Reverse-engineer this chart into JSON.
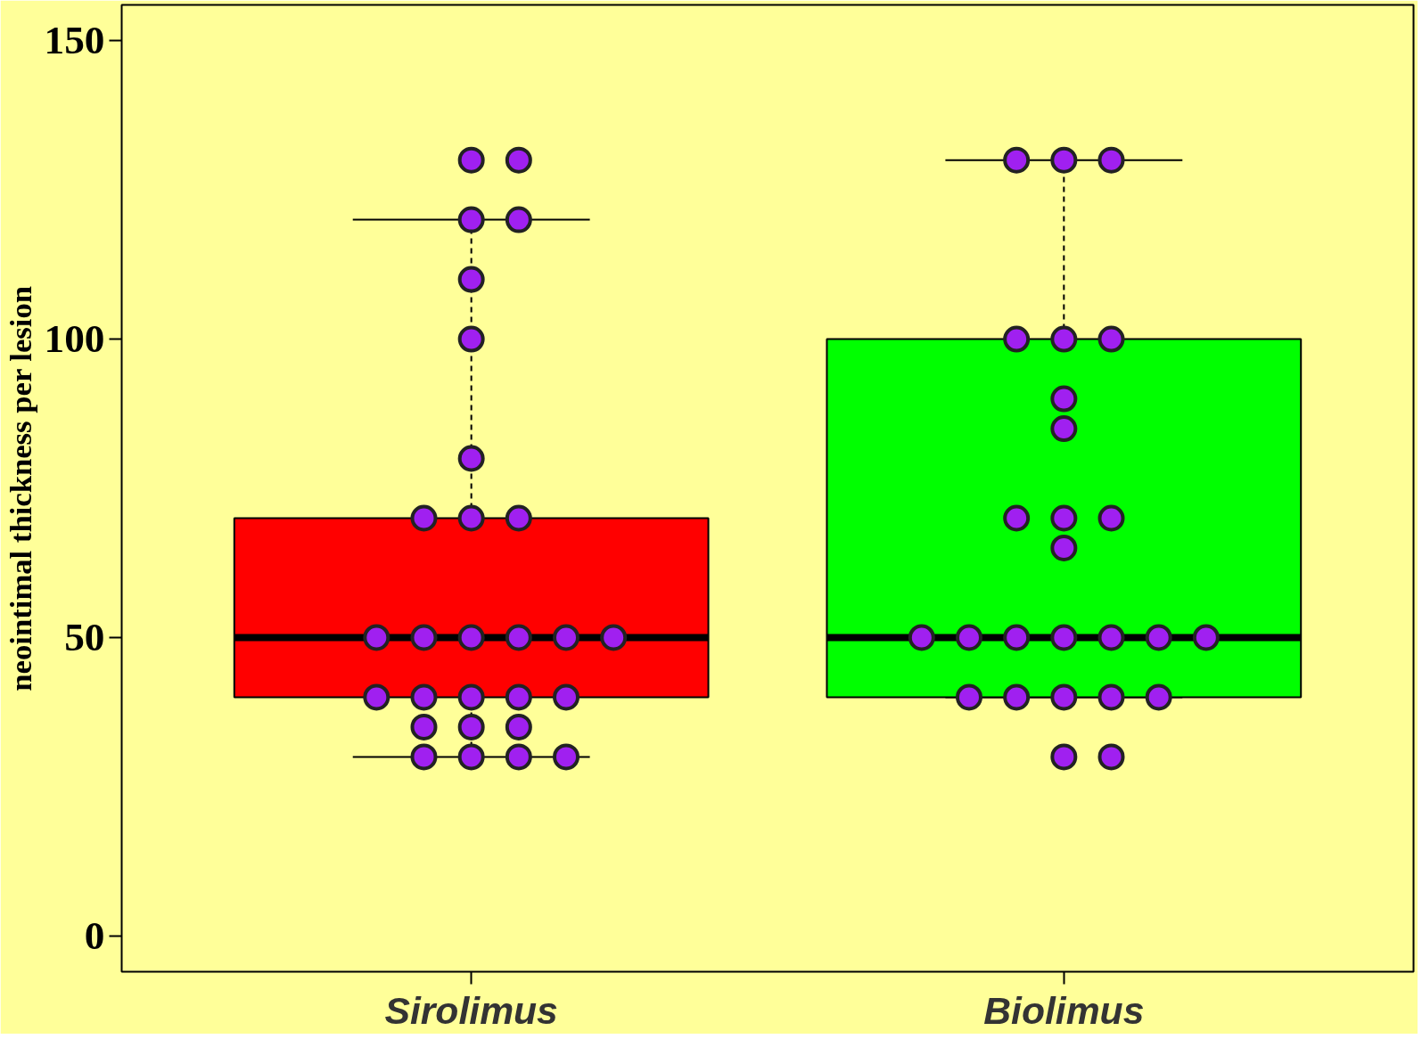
{
  "chart_data": {
    "type": "box",
    "categories": [
      "Sirolimus",
      "Biolimus"
    ],
    "ylabel": "neointimal thickness per lesion",
    "ylim": [
      -6,
      156
    ],
    "yticks": [
      0,
      50,
      100,
      150
    ],
    "grid": false,
    "colors": [
      "#ff0000",
      "#00ff00"
    ],
    "boxes": [
      {
        "low": 30,
        "q1": 40,
        "median": 50,
        "q3": 70,
        "high": 120
      },
      {
        "low": 40,
        "q1": 40,
        "median": 50,
        "q3": 100,
        "high": 130
      }
    ],
    "series": [
      {
        "type": "scatter",
        "color": "#a020f0",
        "marker": "circle",
        "x": [
          "Sirolimus",
          "Sirolimus",
          "Sirolimus",
          "Sirolimus",
          "Sirolimus",
          "Sirolimus",
          "Sirolimus",
          "Sirolimus",
          "Sirolimus",
          "Sirolimus",
          "Sirolimus",
          "Sirolimus",
          "Sirolimus",
          "Sirolimus",
          "Sirolimus",
          "Sirolimus",
          "Sirolimus",
          "Sirolimus",
          "Sirolimus",
          "Sirolimus",
          "Sirolimus",
          "Sirolimus",
          "Sirolimus",
          "Sirolimus",
          "Sirolimus",
          "Sirolimus",
          "Sirolimus",
          "Sirolimus",
          "Biolimus",
          "Biolimus",
          "Biolimus",
          "Biolimus",
          "Biolimus",
          "Biolimus",
          "Biolimus",
          "Biolimus",
          "Biolimus",
          "Biolimus",
          "Biolimus",
          "Biolimus",
          "Biolimus",
          "Biolimus",
          "Biolimus",
          "Biolimus",
          "Biolimus",
          "Biolimus",
          "Biolimus",
          "Biolimus",
          "Biolimus",
          "Biolimus",
          "Biolimus",
          "Biolimus",
          "Biolimus",
          "Biolimus"
        ],
        "values": [
          130,
          130,
          120,
          120,
          110,
          100,
          80,
          70,
          70,
          70,
          50,
          50,
          50,
          50,
          50,
          50,
          40,
          40,
          40,
          40,
          40,
          35,
          35,
          35,
          30,
          30,
          30,
          30,
          130,
          130,
          130,
          100,
          100,
          100,
          90,
          85,
          70,
          70,
          70,
          65,
          50,
          50,
          50,
          50,
          50,
          50,
          50,
          40,
          40,
          40,
          40,
          40,
          30,
          30
        ]
      }
    ]
  }
}
